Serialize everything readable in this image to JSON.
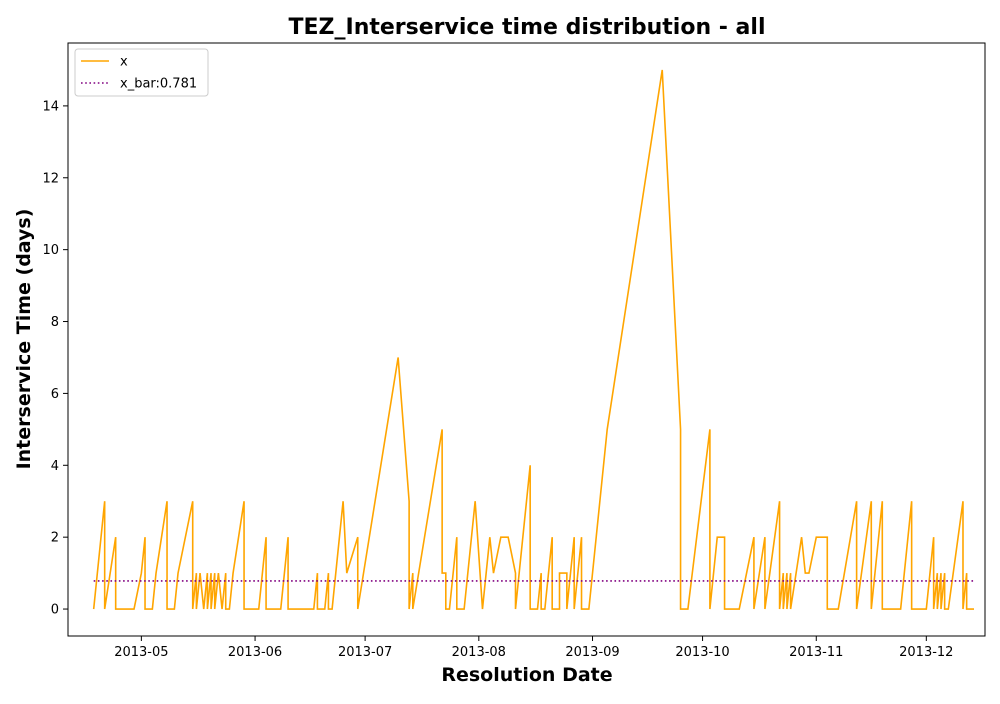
{
  "chart_data": {
    "type": "line",
    "title": "TEZ_Interservice time distribution - all",
    "xlabel": "Resolution Date",
    "ylabel": "Interservice Time (days)",
    "xlim": [
      "2013-04-11",
      "2013-12-17"
    ],
    "ylim": [
      -0.75,
      15.75
    ],
    "x_ticks": [
      "2013-05-01",
      "2013-06-01",
      "2013-07-01",
      "2013-08-01",
      "2013-09-01",
      "2013-10-01",
      "2013-11-01",
      "2013-12-01"
    ],
    "x_tick_labels": [
      "2013-05",
      "2013-06",
      "2013-07",
      "2013-08",
      "2013-09",
      "2013-10",
      "2013-11",
      "2013-12"
    ],
    "y_ticks": [
      0,
      2,
      4,
      6,
      8,
      10,
      12,
      14
    ],
    "grid": false,
    "legend_position": "top-left",
    "series": [
      {
        "name": "x",
        "color": "#FFA500",
        "style": "solid",
        "points": [
          [
            "2013-04-18",
            0
          ],
          [
            "2013-04-21",
            3
          ],
          [
            "2013-04-21",
            0
          ],
          [
            "2013-04-24",
            2
          ],
          [
            "2013-04-24",
            0
          ],
          [
            "2013-04-28",
            0
          ],
          [
            "2013-04-29",
            0
          ],
          [
            "2013-05-01",
            1
          ],
          [
            "2013-05-02",
            2
          ],
          [
            "2013-05-02",
            0
          ],
          [
            "2013-05-04",
            0
          ],
          [
            "2013-05-05",
            1
          ],
          [
            "2013-05-08",
            3
          ],
          [
            "2013-05-08",
            0
          ],
          [
            "2013-05-10",
            0
          ],
          [
            "2013-05-11",
            1
          ],
          [
            "2013-05-15",
            3
          ],
          [
            "2013-05-15",
            0
          ],
          [
            "2013-05-16",
            1
          ],
          [
            "2013-05-16",
            0
          ],
          [
            "2013-05-17",
            1
          ],
          [
            "2013-05-18",
            0
          ],
          [
            "2013-05-19",
            1
          ],
          [
            "2013-05-19",
            0
          ],
          [
            "2013-05-20",
            1
          ],
          [
            "2013-05-20",
            0
          ],
          [
            "2013-05-21",
            1
          ],
          [
            "2013-05-21",
            0
          ],
          [
            "2013-05-22",
            1
          ],
          [
            "2013-05-23",
            0
          ],
          [
            "2013-05-24",
            1
          ],
          [
            "2013-05-24",
            0
          ],
          [
            "2013-05-25",
            0
          ],
          [
            "2013-05-26",
            1
          ],
          [
            "2013-05-29",
            3
          ],
          [
            "2013-05-29",
            0
          ],
          [
            "2013-06-02",
            0
          ],
          [
            "2013-06-03",
            1
          ],
          [
            "2013-06-04",
            2
          ],
          [
            "2013-06-04",
            0
          ],
          [
            "2013-06-05",
            0
          ],
          [
            "2013-06-08",
            0
          ],
          [
            "2013-06-09",
            1
          ],
          [
            "2013-06-10",
            2
          ],
          [
            "2013-06-10",
            0
          ],
          [
            "2013-06-15",
            0
          ],
          [
            "2013-06-16",
            0
          ],
          [
            "2013-06-17",
            0
          ],
          [
            "2013-06-18",
            1
          ],
          [
            "2013-06-18",
            0
          ],
          [
            "2013-06-20",
            0
          ],
          [
            "2013-06-21",
            1
          ],
          [
            "2013-06-21",
            0
          ],
          [
            "2013-06-22",
            0
          ],
          [
            "2013-06-25",
            3
          ],
          [
            "2013-06-26",
            1
          ],
          [
            "2013-06-29",
            2
          ],
          [
            "2013-06-29",
            0
          ],
          [
            "2013-07-10",
            7
          ],
          [
            "2013-07-13",
            3
          ],
          [
            "2013-07-13",
            0
          ],
          [
            "2013-07-14",
            1
          ],
          [
            "2013-07-14",
            0
          ],
          [
            "2013-07-22",
            5
          ],
          [
            "2013-07-22",
            1
          ],
          [
            "2013-07-23",
            1
          ],
          [
            "2013-07-23",
            0
          ],
          [
            "2013-07-24",
            0
          ],
          [
            "2013-07-26",
            2
          ],
          [
            "2013-07-26",
            0
          ],
          [
            "2013-07-28",
            0
          ],
          [
            "2013-07-31",
            3
          ],
          [
            "2013-08-02",
            0
          ],
          [
            "2013-08-04",
            2
          ],
          [
            "2013-08-05",
            1
          ],
          [
            "2013-08-07",
            2
          ],
          [
            "2013-08-09",
            2
          ],
          [
            "2013-08-11",
            1
          ],
          [
            "2013-08-11",
            0
          ],
          [
            "2013-08-15",
            4
          ],
          [
            "2013-08-15",
            0
          ],
          [
            "2013-08-17",
            0
          ],
          [
            "2013-08-18",
            1
          ],
          [
            "2013-08-18",
            0
          ],
          [
            "2013-08-19",
            0
          ],
          [
            "2013-08-21",
            2
          ],
          [
            "2013-08-21",
            0
          ],
          [
            "2013-08-23",
            0
          ],
          [
            "2013-08-23",
            1
          ],
          [
            "2013-08-25",
            1
          ],
          [
            "2013-08-25",
            0
          ],
          [
            "2013-08-27",
            2
          ],
          [
            "2013-08-27",
            0
          ],
          [
            "2013-08-29",
            2
          ],
          [
            "2013-08-29",
            0
          ],
          [
            "2013-08-31",
            0
          ],
          [
            "2013-09-05",
            5
          ],
          [
            "2013-09-20",
            15
          ],
          [
            "2013-09-25",
            5
          ],
          [
            "2013-09-25",
            0
          ],
          [
            "2013-09-27",
            0
          ],
          [
            "2013-10-03",
            5
          ],
          [
            "2013-10-03",
            0
          ],
          [
            "2013-10-05",
            2
          ],
          [
            "2013-10-07",
            2
          ],
          [
            "2013-10-07",
            0
          ],
          [
            "2013-10-11",
            0
          ],
          [
            "2013-10-15",
            2
          ],
          [
            "2013-10-15",
            0
          ],
          [
            "2013-10-18",
            2
          ],
          [
            "2013-10-18",
            0
          ],
          [
            "2013-10-22",
            3
          ],
          [
            "2013-10-22",
            0
          ],
          [
            "2013-10-23",
            1
          ],
          [
            "2013-10-23",
            0
          ],
          [
            "2013-10-24",
            1
          ],
          [
            "2013-10-24",
            0
          ],
          [
            "2013-10-25",
            1
          ],
          [
            "2013-10-25",
            0
          ],
          [
            "2013-10-28",
            2
          ],
          [
            "2013-10-29",
            1
          ],
          [
            "2013-10-30",
            1
          ],
          [
            "2013-11-01",
            2
          ],
          [
            "2013-11-04",
            2
          ],
          [
            "2013-11-04",
            0
          ],
          [
            "2013-11-07",
            0
          ],
          [
            "2013-11-12",
            3
          ],
          [
            "2013-11-12",
            0
          ],
          [
            "2013-11-16",
            3
          ],
          [
            "2013-11-16",
            0
          ],
          [
            "2013-11-19",
            3
          ],
          [
            "2013-11-19",
            0
          ],
          [
            "2013-11-24",
            0
          ],
          [
            "2013-11-25",
            1
          ],
          [
            "2013-11-27",
            3
          ],
          [
            "2013-11-27",
            0
          ],
          [
            "2013-12-01",
            0
          ],
          [
            "2013-12-03",
            2
          ],
          [
            "2013-12-03",
            0
          ],
          [
            "2013-12-04",
            1
          ],
          [
            "2013-12-04",
            0
          ],
          [
            "2013-12-05",
            1
          ],
          [
            "2013-12-05",
            0
          ],
          [
            "2013-12-06",
            1
          ],
          [
            "2013-12-06",
            0
          ],
          [
            "2013-12-07",
            0
          ],
          [
            "2013-12-11",
            3
          ],
          [
            "2013-12-11",
            0
          ],
          [
            "2013-12-12",
            1
          ],
          [
            "2013-12-12",
            0
          ],
          [
            "2013-12-14",
            0
          ]
        ]
      },
      {
        "name": "x_bar:0.781",
        "color": "#800080",
        "style": "dotted",
        "points": [
          [
            "2013-04-18",
            0.781
          ],
          [
            "2013-12-14",
            0.781
          ]
        ]
      }
    ]
  }
}
